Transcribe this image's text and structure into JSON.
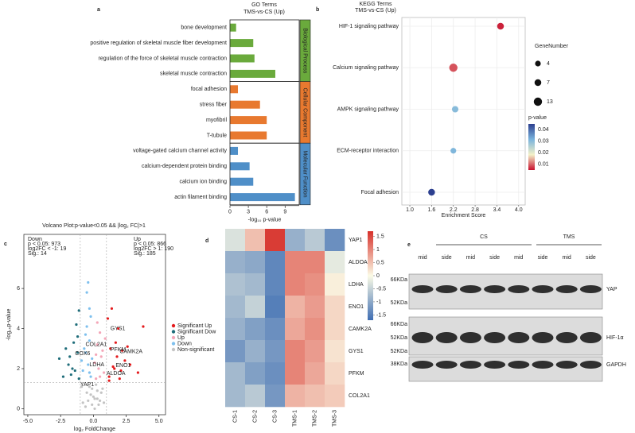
{
  "panel_labels": [
    "a",
    "b",
    "c",
    "d",
    "e"
  ],
  "chart_data": [
    {
      "type": "bar",
      "title": "GO Terms",
      "subtitle": "TMS-vs-CS (Up)",
      "xlabel": "-log₁₀ p-value",
      "xlim": [
        0,
        11.3
      ],
      "xticks": [
        0,
        3,
        6,
        9
      ],
      "series": [
        {
          "name": "Biological Process",
          "color": "#6aaa3c",
          "categories": [
            "bone development",
            "positive regulation of skeletal muscle fiber development",
            "regulation of the force of skeletal muscle contraction",
            "skeletal muscle contraction"
          ],
          "values": [
            1.0,
            3.8,
            4.0,
            7.4
          ]
        },
        {
          "name": "Cellular Component",
          "color": "#e8792f",
          "categories": [
            "focal adhesion",
            "stress fiber",
            "myofibril",
            "T-tubule"
          ],
          "values": [
            1.3,
            4.9,
            6.0,
            6.0
          ]
        },
        {
          "name": "Molecular Function",
          "color": "#4f8fc8",
          "categories": [
            "voltage-gated calcium channel activity",
            "calcium-dependent protein binding",
            "calcium ion binding",
            "actin filament binding"
          ],
          "values": [
            1.3,
            3.2,
            3.8,
            10.6
          ]
        }
      ]
    },
    {
      "type": "dot",
      "title": "KEGG Terms",
      "subtitle": "TMS-vs-CS (Up)",
      "xlabel": "Enrichment Score",
      "categories": [
        "HIF-1 signaling pathway",
        "Calcium signaling pathway",
        "AMPK signaling pathway",
        "ECM-receptor interaction",
        "Focal adhesion"
      ],
      "values": [
        3.5,
        2.2,
        2.25,
        2.2,
        1.6
      ],
      "sizes": [
        7,
        13,
        6,
        4,
        7
      ],
      "pvalues": [
        0.006,
        0.009,
        0.03,
        0.031,
        0.045
      ],
      "xlim": [
        0.78,
        4.18
      ],
      "xticks": [
        {
          "value": 1,
          "label": "1.0"
        },
        1.6,
        2.2,
        2.8,
        3.4,
        {
          "value": 4,
          "label": "4.0"
        }
      ],
      "grid": true,
      "size_legend": {
        "title": "GeneNumber",
        "values": [
          4,
          7,
          13
        ]
      },
      "color_legend": {
        "title": "p-value",
        "lim": [
          0.005,
          0.045
        ],
        "ticks": [
          0.01,
          0.02,
          0.03,
          0.04
        ],
        "colors": [
          "#c8102e",
          "#f3f1c8",
          "#79b3dc",
          "#2c3f8f"
        ]
      }
    },
    {
      "type": "scatter",
      "title": "Volcano Plot:p-value<0.05 && |log₂ FC|>1",
      "xlabel": "log₂ FoldChange",
      "ylabel": "-log₁₀p-value",
      "xlim": [
        -5.3,
        5.5
      ],
      "ylim": [
        -0.3,
        8.7
      ],
      "xticks": [
        {
          "value": -5,
          "label": "-5.0"
        },
        -2.5,
        {
          "value": 0,
          "label": "0.0"
        },
        2.5,
        {
          "value": 5,
          "label": "5.0"
        }
      ],
      "yticks": [
        0,
        2,
        4,
        6
      ],
      "vlines": [
        -1,
        1
      ],
      "hline": 1.3,
      "stats_down": [
        "Down",
        "p < 0.05: 973",
        "log2FC < -1: 19",
        "Sig.: 14"
      ],
      "stats_up": [
        "Up",
        "p < 0.05: 866",
        "log2FC > 1: 190",
        "Sig.: 185"
      ],
      "series": [
        {
          "name": "Significant Up",
          "color": "#e41a1c",
          "x": [
            1.2,
            1.5,
            1.8,
            2.1,
            1.3,
            2.4,
            1.7,
            2.8,
            1.1,
            1.9,
            2.2,
            3.4,
            1.4,
            2.6,
            1.6,
            1.2,
            2.0,
            3.8
          ],
          "y": [
            1.6,
            2.1,
            2.6,
            1.9,
            3.0,
            2.4,
            3.3,
            2.2,
            4.5,
            4.0,
            2.9,
            1.8,
            5.0,
            3.1,
            2.0,
            1.4,
            1.5,
            4.1
          ]
        },
        {
          "name": "Significant Dow",
          "color": "#1f6d7a",
          "x": [
            -1.2,
            -1.5,
            -2.6,
            -1.1,
            -1.8,
            -1.3,
            -2.1,
            -1.4,
            -1.9,
            -1.6,
            -1.2,
            -2.3,
            -1.1,
            -1.7
          ],
          "y": [
            2.8,
            3.3,
            2.5,
            4.9,
            2.6,
            4.2,
            3.0,
            1.9,
            2.2,
            2.0,
            3.6,
            1.6,
            1.5,
            1.7
          ]
        },
        {
          "name": "Up",
          "color": "#f4a6b8",
          "x": [
            0.2,
            0.4,
            0.6,
            0.3,
            0.8,
            0.5,
            0.1,
            0.7,
            0.3,
            0.9,
            0.5,
            0.2
          ],
          "y": [
            1.5,
            2.0,
            2.6,
            3.2,
            1.8,
            3.8,
            2.3,
            2.9,
            4.3,
            3.5,
            1.6,
            2.7
          ]
        },
        {
          "name": "Down",
          "color": "#7ec0ee",
          "x": [
            -0.2,
            -0.4,
            -0.6,
            -0.3,
            -0.8,
            -0.5,
            -0.1,
            -0.7,
            -0.3,
            -0.5,
            -0.2,
            -0.9,
            -0.4,
            -0.6,
            -0.3
          ],
          "y": [
            1.6,
            2.2,
            2.8,
            3.4,
            1.9,
            4.1,
            2.5,
            3.0,
            5.0,
            5.8,
            4.6,
            2.4,
            6.3,
            3.7,
            1.8
          ]
        },
        {
          "name": "Non-significant",
          "color": "#c4c4c4",
          "x": [
            -0.8,
            -0.5,
            -0.3,
            -0.1,
            0.1,
            0.3,
            0.5,
            0.7,
            -0.6,
            0.2,
            -0.2,
            0.4,
            0.0,
            -0.4,
            0.6,
            -0.9,
            0.8,
            0.1,
            -0.1,
            0.3
          ],
          "y": [
            0.3,
            0.8,
            1.1,
            0.2,
            0.5,
            0.9,
            0.4,
            1.0,
            0.1,
            1.2,
            0.7,
            0.2,
            0.6,
            0.4,
            0.8,
            1.1,
            0.3,
            0.0,
            1.0,
            0.5
          ]
        }
      ],
      "annotations": [
        {
          "text": "GYS1",
          "x": 1.3,
          "y": 4.0,
          "color": "#e41a1c"
        },
        {
          "text": "COL2A1",
          "x": -0.6,
          "y": 3.2,
          "color": "#e41a1c"
        },
        {
          "text": "PFKM",
          "x": 1.3,
          "y": 2.95,
          "color": "#e41a1c"
        },
        {
          "text": "CAMK2A",
          "x": 2.0,
          "y": 2.85,
          "color": "#e41a1c"
        },
        {
          "text": "ENO1",
          "x": 1.7,
          "y": 2.15,
          "color": "#e41a1c"
        },
        {
          "text": "LDHA",
          "x": -0.3,
          "y": 2.2,
          "color": "#e41a1c"
        },
        {
          "text": "ALDOA",
          "x": 1.0,
          "y": 1.75,
          "color": "#e41a1c"
        },
        {
          "text": "COX6",
          "x": -1.4,
          "y": 2.75,
          "color": "#4d6b80"
        },
        {
          "text": "YAP1",
          "x": -1.0,
          "y": 1.2,
          "color": "#7ec0ee"
        }
      ]
    },
    {
      "type": "heatmap",
      "rows": [
        "YAP1",
        "ALDOA",
        "LDHA",
        "ENO1",
        "CAMK2A",
        "GYS1",
        "PFKM",
        "COL2A1"
      ],
      "columns": [
        "CS-1",
        "CS-2",
        "CS-3",
        "TMS-1",
        "TMS-2",
        "TMS-3"
      ],
      "values": [
        [
          -0.3,
          0.5,
          1.6,
          -0.9,
          -0.6,
          -1.3
        ],
        [
          -0.9,
          -1.0,
          -1.4,
          1.0,
          1.0,
          -0.2
        ],
        [
          -0.7,
          -0.8,
          -1.4,
          1.0,
          0.9,
          0.1
        ],
        [
          -0.8,
          -0.5,
          -1.5,
          0.6,
          0.8,
          0.3
        ],
        [
          -0.9,
          -1.1,
          -1.3,
          0.7,
          0.9,
          0.3
        ],
        [
          -1.2,
          -0.9,
          -1.2,
          1.0,
          0.8,
          0.2
        ],
        [
          -0.8,
          -1.1,
          -1.3,
          1.0,
          0.7,
          0.3
        ],
        [
          -0.8,
          -0.6,
          -1.2,
          0.6,
          0.5,
          0.4
        ]
      ],
      "clim": [
        -1.7,
        1.7
      ],
      "cticks": [
        1.5,
        1,
        0.5,
        0,
        -0.5,
        -1,
        -1.5
      ],
      "colors": [
        "#3f6eb3",
        "#fbfbe6",
        "#d7302a"
      ]
    }
  ],
  "blot": {
    "groups": [
      "CS",
      "TMS"
    ],
    "lanes": [
      "mid",
      "side",
      "mid",
      "side",
      "mid",
      "side",
      "mid",
      "side"
    ],
    "rows": [
      {
        "protein": "YAP",
        "markers": [
          "66KDa",
          "52KDa"
        ]
      },
      {
        "protein": "HIF-1α",
        "markers": [
          "66KDa",
          "52KDa"
        ]
      },
      {
        "protein": "GAPDH",
        "markers": [
          "52KDa",
          "38KDa"
        ]
      }
    ]
  }
}
